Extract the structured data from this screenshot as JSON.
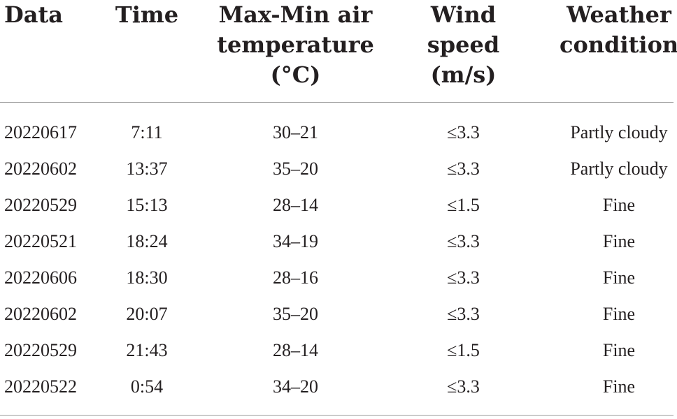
{
  "table": {
    "headers": {
      "data": [
        "Data"
      ],
      "time": [
        "Time"
      ],
      "temperature": [
        "Max-Min air",
        "temperature",
        "(°C)"
      ],
      "wind": [
        "Wind",
        "speed",
        "(m/s)"
      ],
      "condition": [
        "Weather",
        "condition"
      ]
    },
    "rows": [
      {
        "date": "20220617",
        "time": "7:11",
        "temperature": "30–21",
        "wind": "≤3.3",
        "condition": "Partly cloudy"
      },
      {
        "date": "20220602",
        "time": "13:37",
        "temperature": "35–20",
        "wind": "≤3.3",
        "condition": "Partly cloudy"
      },
      {
        "date": "20220529",
        "time": "15:13",
        "temperature": "28–14",
        "wind": "≤1.5",
        "condition": "Fine"
      },
      {
        "date": "20220521",
        "time": "18:24",
        "temperature": "34–19",
        "wind": "≤3.3",
        "condition": "Fine"
      },
      {
        "date": "20220606",
        "time": "18:30",
        "temperature": "28–16",
        "wind": "≤3.3",
        "condition": "Fine"
      },
      {
        "date": "20220602",
        "time": "20:07",
        "temperature": "35–20",
        "wind": "≤3.3",
        "condition": "Fine"
      },
      {
        "date": "20220529",
        "time": "21:43",
        "temperature": "28–14",
        "wind": "≤1.5",
        "condition": "Fine"
      },
      {
        "date": "20220522",
        "time": "0:54",
        "temperature": "34–20",
        "wind": "≤3.3",
        "condition": "Fine"
      }
    ]
  }
}
